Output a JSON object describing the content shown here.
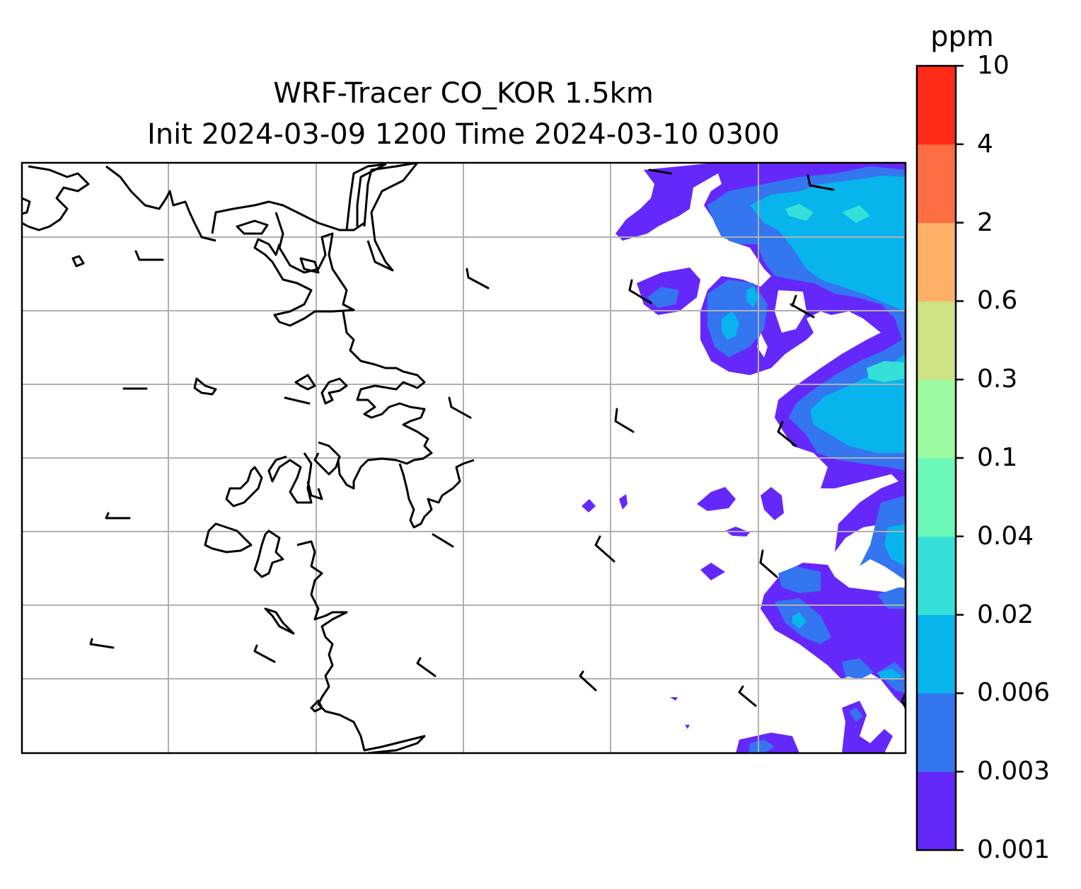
{
  "title_line1": "WRF-Tracer CO_KOR 1.5km",
  "title_line2": "Init 2024-03-09 1200 Time 2024-03-10 0300",
  "colorbar": {
    "label": "ppm",
    "levels": [
      "0.001",
      "0.003",
      "0.006",
      "0.02",
      "0.04",
      "0.1",
      "0.3",
      "0.6",
      "2",
      "4",
      "10"
    ],
    "colors": [
      "#6528fb",
      "#3475f0",
      "#08b4ec",
      "#35e0d8",
      "#6bf8b8",
      "#9cfba0",
      "#cfe284",
      "#feb166",
      "#fe6e43",
      "#ff2a17"
    ]
  },
  "map": {
    "gridlines": true,
    "features": [
      "coastline",
      "wind-barbs",
      "tracer-concentration-contours"
    ]
  }
}
